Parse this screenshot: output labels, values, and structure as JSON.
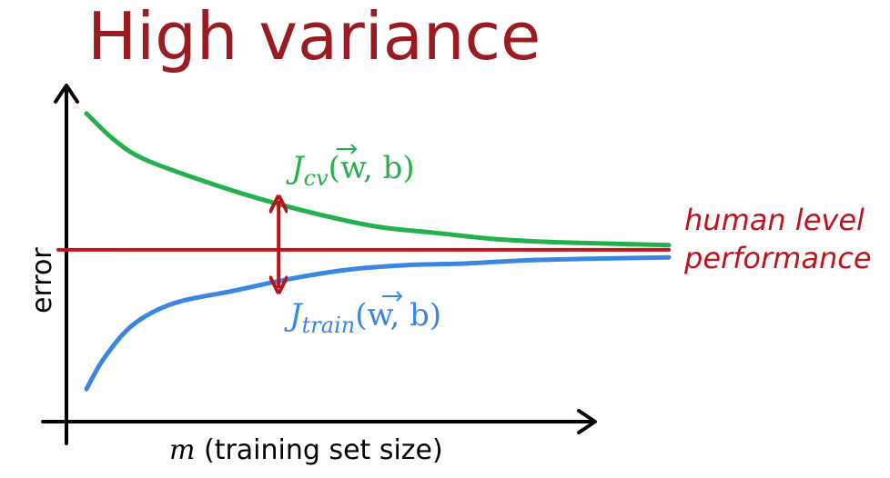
{
  "chart_data": {
    "type": "line",
    "title": "High variance",
    "xlabel_var": "m",
    "xlabel_rest": " (training set size)",
    "ylabel": "error",
    "annotation": {
      "upper_line": "human level",
      "lower_line": "performance"
    },
    "series": [
      {
        "key": "cv",
        "label_main": "J",
        "label_sub": "cv",
        "label_args": "(w, b)",
        "color": "#22b14c",
        "x": [
          0.0,
          0.05,
          0.1,
          0.2,
          0.3,
          0.4,
          0.5,
          0.6,
          0.7,
          0.8,
          0.9,
          1.0
        ],
        "y": [
          0.95,
          0.86,
          0.8,
          0.73,
          0.67,
          0.62,
          0.58,
          0.56,
          0.54,
          0.53,
          0.525,
          0.52
        ]
      },
      {
        "key": "train",
        "label_main": "J",
        "label_sub": "train",
        "label_args": "(w, b)",
        "color": "#3b86e0",
        "x": [
          0.0,
          0.03,
          0.08,
          0.15,
          0.25,
          0.35,
          0.45,
          0.55,
          0.65,
          0.75,
          0.85,
          1.0
        ],
        "y": [
          0.05,
          0.15,
          0.26,
          0.33,
          0.37,
          0.41,
          0.44,
          0.455,
          0.46,
          0.47,
          0.475,
          0.48
        ]
      }
    ],
    "reference_line": {
      "key": "human",
      "color": "#c0141d",
      "y": 0.505
    },
    "gap_arrow": {
      "x": 0.33,
      "y_top": 0.66,
      "y_bottom": 0.385,
      "color": "#b8141c"
    },
    "axis_color": "#000000"
  }
}
